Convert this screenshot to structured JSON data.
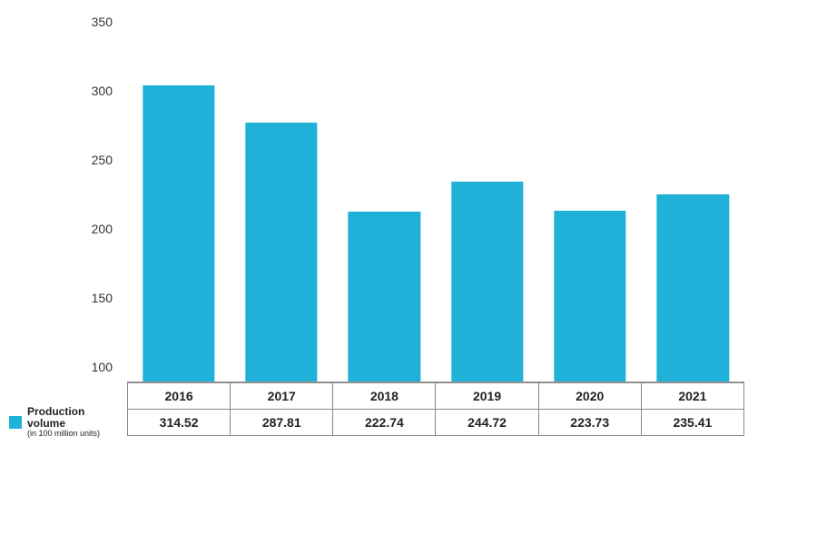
{
  "chart": {
    "type": "bar",
    "categories": [
      "2016",
      "2017",
      "2018",
      "2019",
      "2020",
      "2021"
    ],
    "values": [
      314.52,
      287.81,
      222.74,
      244.72,
      223.73,
      235.41
    ],
    "bar_color": "#1fb1d8",
    "bar_width_pct": 70,
    "ylim": [
      100,
      350
    ],
    "yticks": [
      100,
      150,
      200,
      250,
      300,
      350
    ],
    "background_color": "#ffffff",
    "axis_color": "#888888",
    "tick_font_size": 14,
    "tick_color": "#333333",
    "table_border_color": "#888888",
    "table_font_size": 14,
    "table_font_weight": "700",
    "legend": {
      "swatch_color": "#1fb1d8",
      "label": "Production volume",
      "sublabel": "(in 100 million units)"
    }
  }
}
